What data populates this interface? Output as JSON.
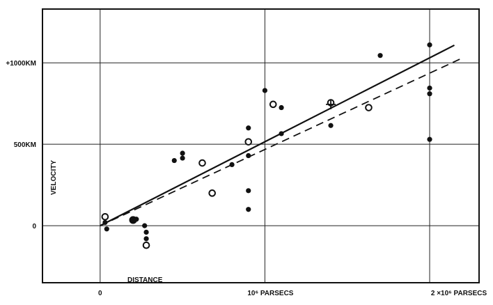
{
  "chart_data": {
    "type": "scatter",
    "title": "",
    "xlabel": "DISTANCE",
    "ylabel": "VELOCITY",
    "xlim": [
      -0.35,
      2.3
    ],
    "ylim": [
      -350,
      1330
    ],
    "grid": true,
    "x_ticks": [
      {
        "value": 0,
        "label": "0"
      },
      {
        "value": 1,
        "label": "10⁶ PARSECS"
      },
      {
        "value": 2,
        "label": "2 ×10⁶ PARSECS"
      }
    ],
    "y_ticks": [
      {
        "value": 0,
        "label": "0"
      },
      {
        "value": 500,
        "label": "500KM"
      },
      {
        "value": 1000,
        "label": "+1000KM"
      }
    ],
    "series": [
      {
        "marker": "filled-circle",
        "points": [
          {
            "x": 0.03,
            "y": 20
          },
          {
            "x": 0.04,
            "y": -20
          },
          {
            "x": 0.22,
            "y": 40
          },
          {
            "x": 0.27,
            "y": 0
          },
          {
            "x": 0.28,
            "y": -40
          },
          {
            "x": 0.28,
            "y": -80
          },
          {
            "x": 0.45,
            "y": 400
          },
          {
            "x": 0.5,
            "y": 445
          },
          {
            "x": 0.5,
            "y": 415
          },
          {
            "x": 0.8,
            "y": 375
          },
          {
            "x": 0.9,
            "y": 600
          },
          {
            "x": 0.9,
            "y": 430
          },
          {
            "x": 0.9,
            "y": 215
          },
          {
            "x": 0.9,
            "y": 100
          },
          {
            "x": 1.0,
            "y": 830
          },
          {
            "x": 1.1,
            "y": 725
          },
          {
            "x": 1.1,
            "y": 565
          },
          {
            "x": 1.4,
            "y": 760
          },
          {
            "x": 1.4,
            "y": 615
          },
          {
            "x": 1.7,
            "y": 1045
          },
          {
            "x": 2.0,
            "y": 1110
          },
          {
            "x": 2.0,
            "y": 845
          },
          {
            "x": 2.0,
            "y": 810
          },
          {
            "x": 2.0,
            "y": 530
          }
        ]
      },
      {
        "marker": "large-filled-circle",
        "points": [
          {
            "x": 0.2,
            "y": 35
          }
        ]
      },
      {
        "marker": "open-circle",
        "points": [
          {
            "x": 0.03,
            "y": 55
          },
          {
            "x": 0.28,
            "y": -120
          },
          {
            "x": 0.62,
            "y": 385
          },
          {
            "x": 0.68,
            "y": 200
          },
          {
            "x": 0.9,
            "y": 515
          },
          {
            "x": 1.05,
            "y": 745
          },
          {
            "x": 1.4,
            "y": 755
          },
          {
            "x": 1.63,
            "y": 725
          }
        ]
      },
      {
        "marker": "cross",
        "points": [
          {
            "x": 1.4,
            "y": 745
          }
        ]
      }
    ],
    "lines": [
      {
        "style": "solid",
        "x": [
          0,
          2.15
        ],
        "y": [
          0,
          1108
        ]
      },
      {
        "style": "dashed",
        "x": [
          0,
          2.2
        ],
        "y": [
          0,
          1030
        ]
      }
    ]
  }
}
